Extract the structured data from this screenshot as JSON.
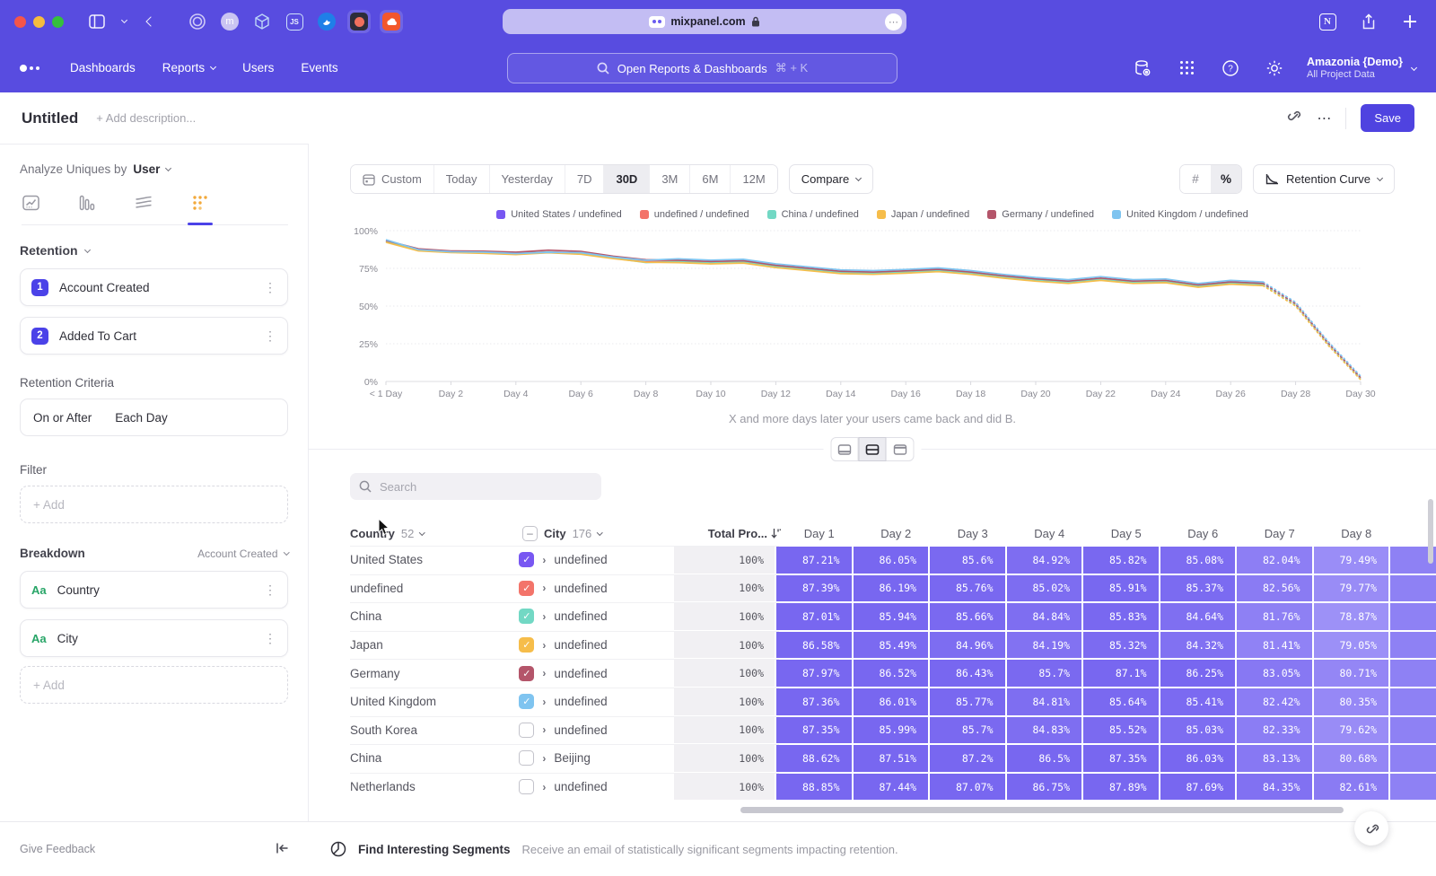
{
  "browser": {
    "url": "mixpanel.com",
    "extension_icons": [
      "target-icon",
      "m-avatar-icon",
      "cube-icon",
      "js-badge-icon",
      "bird-icon",
      "record-icon",
      "cloud-icon"
    ]
  },
  "nav": {
    "items": [
      "Dashboards",
      "Reports",
      "Users",
      "Events"
    ],
    "search_placeholder": "Open Reports & Dashboards",
    "shortcut": "⌘ + K",
    "project_name": "Amazonia {Demo}",
    "project_scope": "All Project Data"
  },
  "header": {
    "title": "Untitled",
    "description_placeholder": "+ Add description...",
    "save_label": "Save"
  },
  "sidebar": {
    "analyze_label": "Analyze Uniques by",
    "analyze_value": "User",
    "section_label": "Retention",
    "steps": [
      {
        "num": "1",
        "label": "Account Created"
      },
      {
        "num": "2",
        "label": "Added To Cart"
      }
    ],
    "criteria_label": "Retention Criteria",
    "criteria_left": "On or After",
    "criteria_right": "Each Day",
    "filter_label": "Filter",
    "add_label": "+ Add",
    "breakdown_label": "Breakdown",
    "breakdown_scope": "Account Created",
    "breakdowns": [
      {
        "type": "Aa",
        "label": "Country"
      },
      {
        "type": "Aa",
        "label": "City"
      }
    ],
    "give_feedback": "Give Feedback"
  },
  "controls": {
    "ranges": [
      "Custom",
      "Today",
      "Yesterday",
      "7D",
      "30D",
      "3M",
      "6M",
      "12M"
    ],
    "active_range": "30D",
    "compare_label": "Compare",
    "unit_options": [
      "#",
      "%"
    ],
    "active_unit": "%",
    "chart_type_label": "Retention Curve"
  },
  "chart_data": {
    "type": "line",
    "x_tick_labels": [
      "< 1 Day",
      "Day 2",
      "Day 4",
      "Day 6",
      "Day 8",
      "Day 10",
      "Day 12",
      "Day 14",
      "Day 16",
      "Day 18",
      "Day 20",
      "Day 22",
      "Day 24",
      "Day 26",
      "Day 28",
      "Day 30"
    ],
    "yticks": [
      "0%",
      "25%",
      "50%",
      "75%",
      "100%"
    ],
    "ylim": [
      0,
      100
    ],
    "dashed_from_index": 27,
    "caption": "X and more days later your users came back and did B.",
    "series": [
      {
        "label": "United States / undefined",
        "color": "#7857F2",
        "values": [
          93.0,
          87.21,
          86.05,
          85.6,
          84.92,
          85.82,
          85.08,
          82.04,
          79.49,
          79.8,
          79.0,
          79.5,
          76.5,
          74.5,
          72.5,
          72.0,
          72.8,
          73.8,
          72.0,
          69.5,
          67.5,
          66.0,
          68.0,
          66.0,
          66.5,
          63.5,
          65.5,
          64.5,
          51.0,
          25.0,
          2.0
        ]
      },
      {
        "label": "undefined / undefined",
        "color": "#F3746A",
        "values": [
          93.2,
          87.39,
          86.19,
          85.76,
          85.02,
          85.91,
          85.37,
          82.56,
          79.77,
          80.1,
          79.3,
          79.8,
          76.8,
          74.8,
          72.8,
          72.3,
          73.1,
          74.1,
          72.3,
          69.8,
          67.8,
          66.3,
          68.3,
          66.3,
          66.8,
          63.8,
          65.8,
          64.8,
          51.3,
          25.3,
          2.3
        ]
      },
      {
        "label": "China / undefined",
        "color": "#72D8C4",
        "values": [
          92.7,
          87.01,
          85.94,
          85.66,
          84.84,
          85.83,
          84.64,
          81.76,
          78.87,
          79.4,
          78.6,
          79.1,
          76.1,
          74.1,
          72.1,
          71.6,
          72.4,
          73.4,
          71.6,
          69.1,
          67.1,
          65.6,
          67.6,
          65.6,
          66.1,
          63.1,
          65.1,
          64.1,
          50.6,
          24.6,
          1.6
        ]
      },
      {
        "label": "Japan / undefined",
        "color": "#F6BD4A",
        "values": [
          92.3,
          86.58,
          85.49,
          84.96,
          84.19,
          85.32,
          84.32,
          81.41,
          79.05,
          78.8,
          78.0,
          78.5,
          75.5,
          73.5,
          71.5,
          71.0,
          71.8,
          72.8,
          71.0,
          68.5,
          66.5,
          65.0,
          67.0,
          65.0,
          65.5,
          62.5,
          64.5,
          63.5,
          50.0,
          24.0,
          1.2
        ]
      },
      {
        "label": "Germany / undefined",
        "color": "#B4556A",
        "values": [
          93.5,
          87.97,
          86.52,
          86.43,
          85.7,
          87.1,
          86.25,
          83.05,
          80.71,
          80.4,
          79.6,
          80.1,
          77.1,
          75.1,
          73.1,
          72.6,
          73.4,
          74.4,
          72.6,
          70.1,
          68.1,
          66.6,
          68.6,
          66.6,
          67.1,
          64.1,
          66.1,
          65.1,
          51.6,
          25.6,
          2.6
        ]
      },
      {
        "label": "United Kingdom / undefined",
        "color": "#7FC4F0",
        "values": [
          94.0,
          87.36,
          86.01,
          85.77,
          84.81,
          85.64,
          85.41,
          82.42,
          80.35,
          81.3,
          80.5,
          81.0,
          78.0,
          76.0,
          74.0,
          73.5,
          74.3,
          75.3,
          73.5,
          71.0,
          69.0,
          67.5,
          69.5,
          67.5,
          68.0,
          65.0,
          67.0,
          66.0,
          52.5,
          26.5,
          3.5
        ]
      }
    ]
  },
  "table": {
    "search_placeholder": "Search",
    "col_country": "Country",
    "country_count": "52",
    "col_city": "City",
    "city_count": "176",
    "col_total": "Total Pro...",
    "day_headers": [
      "Day 1",
      "Day 2",
      "Day 3",
      "Day 4",
      "Day 5",
      "Day 6",
      "Day 7",
      "Day 8"
    ],
    "rows": [
      {
        "country": "United States",
        "checked": true,
        "check_color": "#7857F2",
        "city": "undefined",
        "total": "100%",
        "values": [
          "87.21%",
          "86.05%",
          "85.6%",
          "84.92%",
          "85.82%",
          "85.08%",
          "82.04%",
          "79.49%"
        ]
      },
      {
        "country": "undefined",
        "checked": true,
        "check_color": "#F3746A",
        "city": "undefined",
        "total": "100%",
        "values": [
          "87.39%",
          "86.19%",
          "85.76%",
          "85.02%",
          "85.91%",
          "85.37%",
          "82.56%",
          "79.77%"
        ]
      },
      {
        "country": "China",
        "checked": true,
        "check_color": "#72D8C4",
        "city": "undefined",
        "total": "100%",
        "values": [
          "87.01%",
          "85.94%",
          "85.66%",
          "84.84%",
          "85.83%",
          "84.64%",
          "81.76%",
          "78.87%"
        ]
      },
      {
        "country": "Japan",
        "checked": true,
        "check_color": "#F6BD4A",
        "city": "undefined",
        "total": "100%",
        "values": [
          "86.58%",
          "85.49%",
          "84.96%",
          "84.19%",
          "85.32%",
          "84.32%",
          "81.41%",
          "79.05%"
        ]
      },
      {
        "country": "Germany",
        "checked": true,
        "check_color": "#B4556A",
        "city": "undefined",
        "total": "100%",
        "values": [
          "87.97%",
          "86.52%",
          "86.43%",
          "85.7%",
          "87.1%",
          "86.25%",
          "83.05%",
          "80.71%"
        ]
      },
      {
        "country": "United Kingdom",
        "checked": true,
        "check_color": "#7FC4F0",
        "city": "undefined",
        "total": "100%",
        "values": [
          "87.36%",
          "86.01%",
          "85.77%",
          "84.81%",
          "85.64%",
          "85.41%",
          "82.42%",
          "80.35%"
        ]
      },
      {
        "country": "South Korea",
        "checked": false,
        "check_color": null,
        "city": "undefined",
        "total": "100%",
        "values": [
          "87.35%",
          "85.99%",
          "85.7%",
          "84.83%",
          "85.52%",
          "85.03%",
          "82.33%",
          "79.62%"
        ]
      },
      {
        "country": "China",
        "checked": false,
        "check_color": null,
        "city": "Beijing",
        "total": "100%",
        "values": [
          "88.62%",
          "87.51%",
          "87.2%",
          "86.5%",
          "87.35%",
          "86.03%",
          "83.13%",
          "80.68%"
        ]
      },
      {
        "country": "Netherlands",
        "checked": false,
        "check_color": null,
        "city": "undefined",
        "total": "100%",
        "values": [
          "88.85%",
          "87.44%",
          "87.07%",
          "86.75%",
          "87.89%",
          "87.69%",
          "84.35%",
          "82.61%"
        ]
      }
    ]
  },
  "footer": {
    "title": "Find Interesting Segments",
    "subtitle": "Receive an email of statistically significant segments impacting retention."
  },
  "colors": {
    "chrome": "#584ce0",
    "accent": "#4f43e0",
    "cell_dark": "#7867F0",
    "cell_light": "#A296F8"
  }
}
